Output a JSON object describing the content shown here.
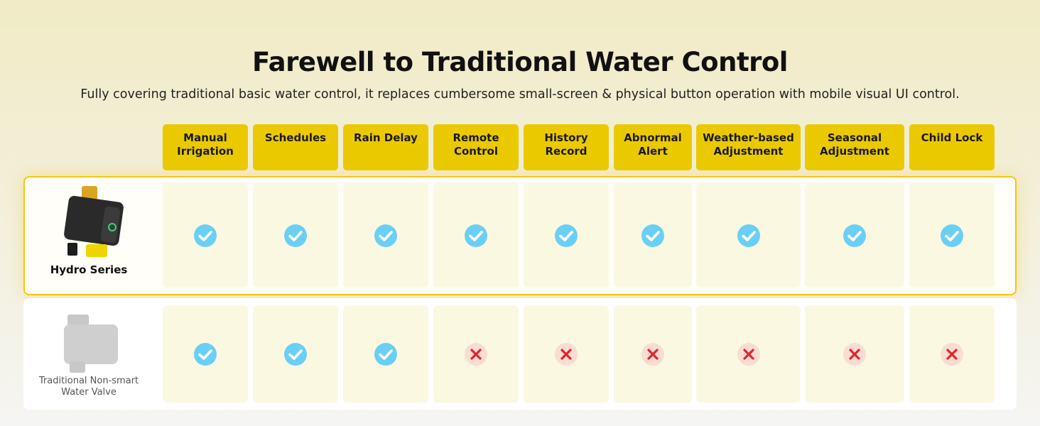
{
  "header": {
    "title": "Farewell to Traditional Water Control",
    "subtitle": "Fully covering traditional basic water control, it replaces cumbersome small-screen & physical button operation with mobile visual UI control."
  },
  "table": {
    "columns": [
      "Manual Irrigation",
      "Schedules",
      "Rain Delay",
      "Remote Control",
      "History Record",
      "Abnormal Alert",
      "Weather-based Adjustment",
      "Seasonal Adjustment",
      "Child Lock"
    ],
    "rows": [
      {
        "label": "Hydro Series",
        "values": [
          true,
          true,
          true,
          true,
          true,
          true,
          true,
          true,
          true
        ]
      },
      {
        "label": "Traditional Non-smart Water Valve",
        "values": [
          true,
          true,
          true,
          false,
          false,
          false,
          false,
          false,
          false
        ]
      }
    ]
  }
}
